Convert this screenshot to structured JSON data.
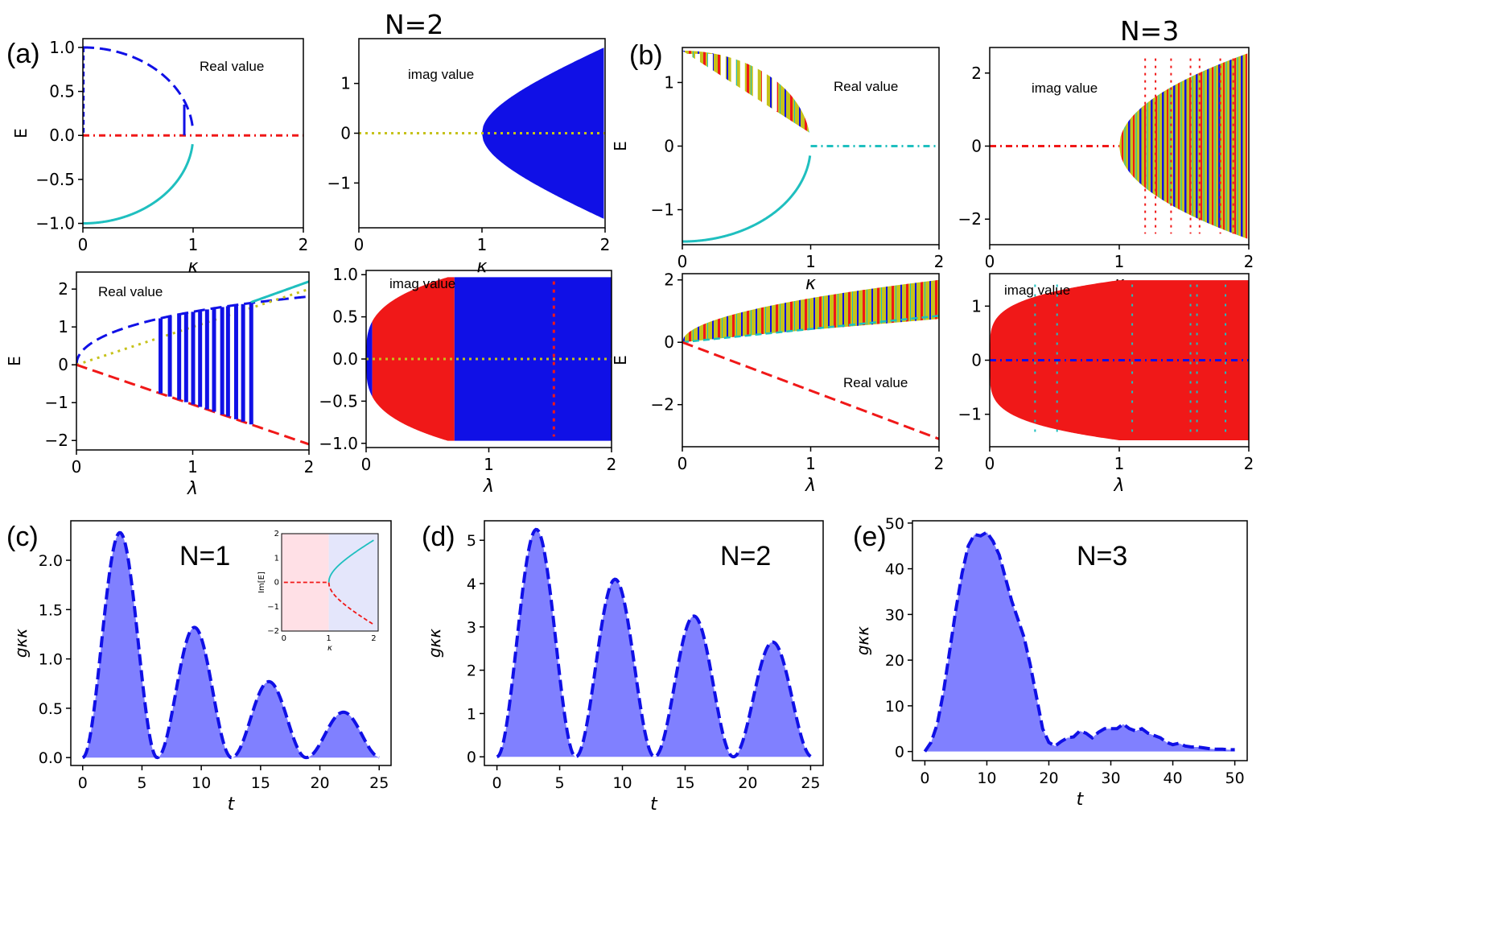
{
  "headings": {
    "left": "N=2",
    "right": "N=3"
  },
  "colors": {
    "blue": "#1010e6",
    "red": "#f01818",
    "cyan": "#1fbfbf",
    "olive": "#c6c21a",
    "area_fill": "#8080ff",
    "pink_bg": "#ffe0e6",
    "lavender_bg": "#e4e6fb"
  },
  "chart_data": [
    {
      "id": "a-real-kappa",
      "panel_label": "(a)",
      "type": "line",
      "annotation": "Real value",
      "xlabel": "κ",
      "ylabel": "E",
      "xlim": [
        0,
        2
      ],
      "ylim": [
        -1.05,
        1.1
      ],
      "xticks": [
        "0",
        "1",
        "2"
      ],
      "yticks": [
        "−1.0",
        "−0.5",
        "0.0",
        "0.5",
        "1.0"
      ],
      "series": [
        {
          "name": "upper branch",
          "style": "dashed",
          "color": "blue",
          "formula": "sqrt(1-k^2)",
          "x_range": [
            0,
            1
          ]
        },
        {
          "name": "lower branch",
          "style": "solid",
          "color": "cyan",
          "formula": "-sqrt(1-k^2)",
          "x_range": [
            0,
            1
          ]
        },
        {
          "name": "zero line",
          "style": "dashdot",
          "color": "red",
          "formula": "0",
          "x_range": [
            0,
            2
          ]
        }
      ]
    },
    {
      "id": "a-imag-kappa",
      "type": "area",
      "annotation": "imag value",
      "xlabel": "κ",
      "ylabel": "",
      "xlim": [
        0,
        2
      ],
      "ylim": [
        -1.9,
        1.9
      ],
      "xticks": [
        "0",
        "1",
        "2"
      ],
      "yticks": [
        "−1",
        "0",
        "1"
      ],
      "envelope": "sqrt(k^2-1)",
      "onset": 1,
      "fill": "blue"
    },
    {
      "id": "a-real-lambda",
      "type": "line",
      "annotation": "Real value",
      "xlabel": "λ",
      "ylabel": "E",
      "xlim": [
        0,
        2
      ],
      "ylim": [
        -2.25,
        2.45
      ],
      "xticks": [
        "0",
        "1",
        "2"
      ],
      "yticks": [
        "−2",
        "−1",
        "0",
        "1",
        "2"
      ],
      "series": [
        {
          "name": "upper",
          "style": "dashed",
          "color": "blue",
          "formula": "sqrt(l)*1.7-0.3*l",
          "x_range": [
            0,
            2
          ]
        },
        {
          "name": "upper cyan",
          "style": "solid",
          "color": "cyan",
          "formula": "1.1*l",
          "x_range": [
            1.5,
            2
          ]
        },
        {
          "name": "diagonal",
          "style": "dotted",
          "color": "olive",
          "formula": "l",
          "x_range": [
            0,
            2
          ]
        },
        {
          "name": "lower",
          "style": "dashed",
          "color": "red",
          "formula": "-1.05*l",
          "x_range": [
            0,
            2
          ]
        }
      ],
      "vertical_bars_x": [
        0.72,
        0.8,
        0.88,
        0.94,
        1.0,
        1.06,
        1.12,
        1.18,
        1.25,
        1.3,
        1.37,
        1.43,
        1.5
      ]
    },
    {
      "id": "a-imag-lambda",
      "type": "area",
      "annotation": "imag value",
      "xlabel": "λ",
      "ylabel": "",
      "xlim": [
        0,
        2
      ],
      "ylim": [
        -1.05,
        1.05
      ],
      "xticks": [
        "0",
        "1",
        "2"
      ],
      "yticks": [
        "−1.0",
        "−0.5",
        "0.0",
        "0.5",
        "1.0"
      ],
      "regions": [
        {
          "from": 0.0,
          "to": 0.05,
          "fill": "blue"
        },
        {
          "from": 0.05,
          "to": 0.72,
          "fill": "red"
        },
        {
          "from": 0.72,
          "to": 2.0,
          "fill": "blue"
        }
      ]
    },
    {
      "id": "b-real-kappa",
      "panel_label": "(b)",
      "type": "line",
      "annotation": "Real value",
      "xlabel": "κ",
      "ylabel": "E",
      "xlim": [
        0,
        2
      ],
      "ylim": [
        -1.55,
        1.55
      ],
      "xticks": [
        "0",
        "1",
        "2"
      ],
      "yticks": [
        "−1",
        "0",
        "1"
      ],
      "series": [
        {
          "name": "lower branch",
          "style": "solid",
          "color": "cyan",
          "formula": "-1.5*sqrt(1-k^2)",
          "x_range": [
            0,
            1
          ]
        },
        {
          "name": "zero line",
          "style": "dashdot",
          "color": "cyan",
          "formula": "0",
          "x_range": [
            1,
            2
          ]
        }
      ]
    },
    {
      "id": "b-imag-kappa",
      "type": "area",
      "annotation": "imag value",
      "xlabel": "κ",
      "ylabel": "",
      "xlim": [
        0,
        2
      ],
      "ylim": [
        -2.7,
        2.7
      ],
      "xticks": [
        "0",
        "1",
        "2"
      ],
      "yticks": [
        "−2",
        "0",
        "2"
      ],
      "envelope": "2.55*sqrt(k-1)",
      "onset": 1,
      "fill": "olive"
    },
    {
      "id": "b-real-lambda",
      "type": "line",
      "annotation": "Real value",
      "xlabel": "λ",
      "ylabel": "E",
      "xlim": [
        0,
        2
      ],
      "ylim": [
        -3.35,
        2.2
      ],
      "xticks": [
        "0",
        "1",
        "2"
      ],
      "yticks": [
        "−2",
        "0",
        "2"
      ],
      "series": [
        {
          "name": "lower",
          "style": "dashed",
          "color": "red",
          "formula": "-1.55*l",
          "x_range": [
            0,
            2
          ]
        }
      ]
    },
    {
      "id": "b-imag-lambda",
      "type": "area",
      "annotation": "imag value",
      "xlabel": "λ",
      "ylabel": "",
      "xlim": [
        0,
        2
      ],
      "ylim": [
        -1.6,
        1.6
      ],
      "xticks": [
        "0",
        "1",
        "2"
      ],
      "yticks": [
        "−1",
        "0",
        "1"
      ],
      "envelope": "1.5*min(1,(l/2)^0.35*1.27)",
      "fill": "red"
    },
    {
      "id": "c",
      "panel_label": "(c)",
      "type": "area",
      "annotation": "N=1",
      "xlabel": "t",
      "ylabel": "gκκ",
      "xlim": [
        -1,
        26
      ],
      "ylim": [
        -0.08,
        2.4
      ],
      "xticks": [
        "0",
        "5",
        "10",
        "15",
        "20",
        "25"
      ],
      "yticks": [
        "0.0",
        "0.5",
        "1.0",
        "1.5",
        "2.0"
      ],
      "peaks_t": [
        3.1,
        9.4,
        15.7,
        22.0
      ],
      "peaks_value": [
        2.28,
        1.32,
        0.77,
        0.46
      ],
      "t_range": [
        0,
        25
      ],
      "inset": {
        "type": "line",
        "ylabel": "Im[E]",
        "xlabel": "κ",
        "xlim": [
          -0.05,
          2.1
        ],
        "ylim": [
          -2,
          2
        ],
        "xticks": [
          "0",
          "1",
          "2"
        ],
        "yticks": [
          "−2",
          "−1",
          "0",
          "1",
          "2"
        ],
        "series": [
          {
            "name": "upper",
            "style": "solid",
            "color": "cyan",
            "formula": "sqrt(k^2-1)",
            "x_range": [
              1,
              2
            ]
          },
          {
            "name": "lower",
            "style": "dashed",
            "color": "red",
            "formula": "-sqrt(k^2-1)",
            "x_range": [
              0,
              2
            ]
          }
        ]
      }
    },
    {
      "id": "d",
      "panel_label": "(d)",
      "type": "area",
      "annotation": "N=2",
      "xlabel": "t",
      "ylabel": "gκκ",
      "xlim": [
        -1,
        26
      ],
      "ylim": [
        -0.2,
        5.45
      ],
      "xticks": [
        "0",
        "5",
        "10",
        "15",
        "20",
        "25"
      ],
      "yticks": [
        "0",
        "1",
        "2",
        "3",
        "4",
        "5"
      ],
      "peaks_t": [
        3.1,
        9.4,
        15.7,
        22.0
      ],
      "peaks_value": [
        5.25,
        4.1,
        3.25,
        2.65
      ],
      "t_range": [
        0,
        25
      ]
    },
    {
      "id": "e",
      "panel_label": "(e)",
      "type": "area",
      "annotation": "N=3",
      "xlabel": "t",
      "ylabel": "gκκ",
      "xlim": [
        -2,
        52
      ],
      "ylim": [
        -2,
        50.5
      ],
      "xticks": [
        "0",
        "10",
        "20",
        "30",
        "40",
        "50"
      ],
      "yticks": [
        "0",
        "10",
        "20",
        "30",
        "40",
        "50"
      ],
      "t": [
        0,
        1,
        2,
        3,
        4,
        5,
        6,
        7,
        8,
        9,
        10,
        11,
        12,
        13,
        14,
        15,
        16,
        17,
        18,
        19,
        20,
        21,
        22,
        23,
        24,
        25,
        26,
        27,
        28,
        29,
        30,
        31,
        32,
        33,
        34,
        35,
        36,
        37,
        38,
        39,
        40,
        41,
        42,
        43,
        44,
        45,
        46,
        47,
        48,
        49,
        50
      ],
      "values": [
        0,
        2,
        6,
        13,
        22,
        31,
        39,
        45,
        47.5,
        47.2,
        48,
        46,
        43,
        38,
        33,
        29,
        25,
        19,
        12,
        5,
        2,
        1.2,
        2.2,
        3,
        3.2,
        4.5,
        4,
        3,
        4.2,
        5,
        5,
        5,
        6,
        5,
        4.5,
        5,
        4,
        3.5,
        3,
        2,
        1.5,
        1.8,
        1.2,
        1,
        1,
        0.8,
        0.6,
        0.5,
        0.5,
        0.4,
        0.4
      ]
    }
  ]
}
